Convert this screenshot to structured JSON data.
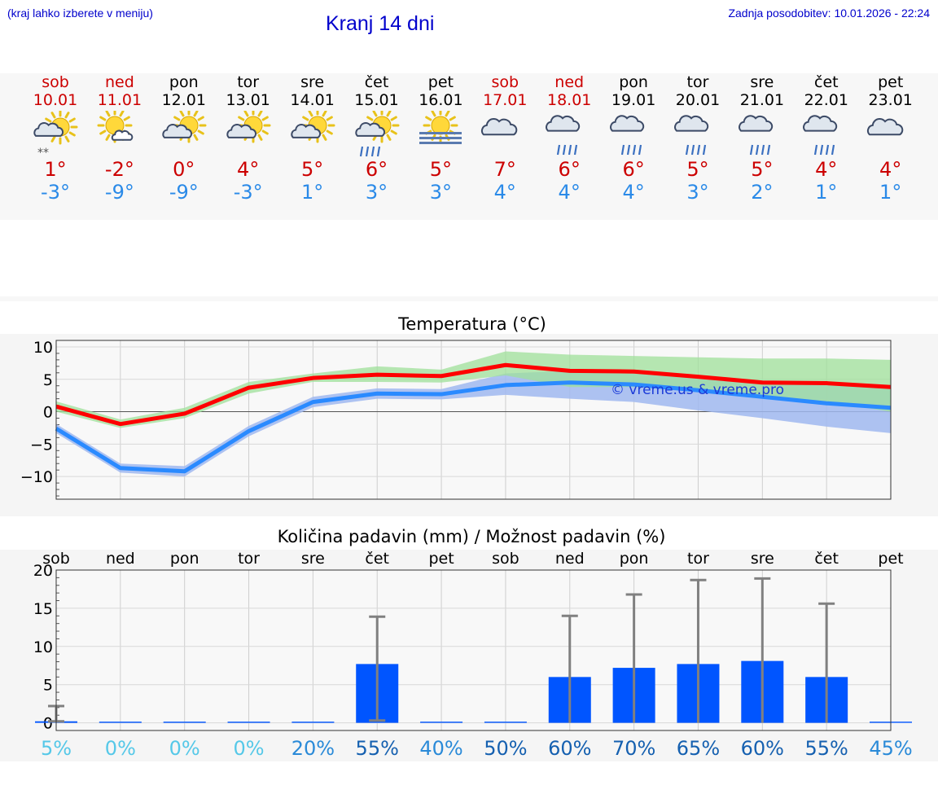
{
  "header": {
    "hint": "(kraj lahko izberete v meniju)",
    "title": "Kranj 14 dni",
    "updated": "Zadnja posodobitev: 10.01.2026 - 22:24"
  },
  "days": [
    {
      "name": "sob",
      "date": "10.01",
      "weekend": true,
      "icon": "sun-cloud-snow-icon",
      "max": "1°",
      "min": "-3°"
    },
    {
      "name": "ned",
      "date": "11.01",
      "weekend": true,
      "icon": "sun-small-cloud-icon",
      "max": "-2°",
      "min": "-9°"
    },
    {
      "name": "pon",
      "date": "12.01",
      "weekend": false,
      "icon": "sun-cloud-icon",
      "max": "0°",
      "min": "-9°"
    },
    {
      "name": "tor",
      "date": "13.01",
      "weekend": false,
      "icon": "sun-cloud-icon",
      "max": "4°",
      "min": "-3°"
    },
    {
      "name": "sre",
      "date": "14.01",
      "weekend": false,
      "icon": "sun-cloud-icon",
      "max": "5°",
      "min": "1°"
    },
    {
      "name": "čet",
      "date": "15.01",
      "weekend": false,
      "icon": "sun-cloud-rain-icon",
      "max": "6°",
      "min": "3°"
    },
    {
      "name": "pet",
      "date": "16.01",
      "weekend": false,
      "icon": "sun-fog-icon",
      "max": "5°",
      "min": "3°"
    },
    {
      "name": "sob",
      "date": "17.01",
      "weekend": true,
      "icon": "cloud-icon",
      "max": "7°",
      "min": "4°"
    },
    {
      "name": "ned",
      "date": "18.01",
      "weekend": true,
      "icon": "cloud-rain-icon",
      "max": "6°",
      "min": "4°"
    },
    {
      "name": "pon",
      "date": "19.01",
      "weekend": false,
      "icon": "cloud-rain-icon",
      "max": "6°",
      "min": "4°"
    },
    {
      "name": "tor",
      "date": "20.01",
      "weekend": false,
      "icon": "cloud-rain-icon",
      "max": "5°",
      "min": "3°"
    },
    {
      "name": "sre",
      "date": "21.01",
      "weekend": false,
      "icon": "cloud-rain-icon",
      "max": "5°",
      "min": "2°"
    },
    {
      "name": "čet",
      "date": "22.01",
      "weekend": false,
      "icon": "cloud-rain-icon",
      "max": "4°",
      "min": "1°"
    },
    {
      "name": "pet",
      "date": "23.01",
      "weekend": false,
      "icon": "cloud-icon",
      "max": "4°",
      "min": "1°"
    }
  ],
  "colors": {
    "weekend": "#cc0000",
    "weekday": "#000000",
    "max_line": "#ff0000",
    "min_line": "#2a8aff",
    "max_band": "#9fe09a",
    "min_band": "#a0b8f0",
    "bar": "#0055ff",
    "errbar": "#808080"
  },
  "chart_data": [
    {
      "type": "line",
      "title": "Temperatura (°C)",
      "watermark": "© vreme.us & vreme.pro",
      "ylim": [
        -13.5,
        11
      ],
      "yticks": [
        10,
        5,
        0,
        -5,
        -10
      ],
      "ytick_labels": [
        "10",
        "5",
        "0",
        "−5",
        "−10"
      ],
      "x": [
        0,
        1,
        2,
        3,
        4,
        5,
        6,
        7,
        8,
        9,
        10,
        11,
        12,
        13
      ],
      "series": [
        {
          "name": "max",
          "values": [
            0.8,
            -1.9,
            -0.3,
            3.7,
            5.2,
            5.7,
            5.5,
            7.2,
            6.3,
            6.2,
            5.4,
            4.5,
            4.4,
            3.8
          ],
          "band_low": [
            0.0,
            -2.5,
            -1.0,
            2.8,
            4.6,
            4.6,
            4.5,
            5.6,
            3.8,
            3.8,
            3.2,
            2.5,
            1.5,
            0.0
          ],
          "band_high": [
            1.6,
            -1.2,
            0.6,
            4.6,
            5.9,
            7.0,
            6.5,
            9.3,
            8.8,
            8.6,
            8.4,
            8.2,
            8.2,
            8.0
          ]
        },
        {
          "name": "min",
          "values": [
            -2.6,
            -8.7,
            -9.2,
            -3.0,
            1.5,
            2.8,
            2.7,
            4.1,
            4.5,
            4.2,
            3.3,
            2.3,
            1.3,
            0.6
          ],
          "band_low": [
            -3.3,
            -9.4,
            -10.0,
            -3.8,
            0.7,
            2.0,
            1.9,
            2.6,
            2.0,
            1.5,
            0.2,
            -1.0,
            -2.3,
            -3.3
          ],
          "band_high": [
            -1.9,
            -8.0,
            -8.4,
            -2.2,
            2.3,
            3.6,
            3.5,
            5.9,
            6.3,
            6.1,
            5.2,
            4.6,
            4.2,
            4.0
          ]
        }
      ]
    },
    {
      "type": "bar",
      "title": "Količina padavin (mm) / Možnost padavin (%)",
      "ylim": [
        -1,
        20
      ],
      "yticks": [
        20,
        15,
        10,
        5,
        0
      ],
      "ytick_labels": [
        "20",
        "15",
        "10",
        "5",
        "0"
      ],
      "categories": [
        "sob",
        "ned",
        "pon",
        "tor",
        "sre",
        "čet",
        "pet",
        "sob",
        "ned",
        "pon",
        "tor",
        "sre",
        "čet",
        "pet"
      ],
      "values": [
        0.2,
        0,
        0,
        0,
        0,
        7.7,
        0,
        0,
        6.0,
        7.2,
        7.7,
        8.1,
        6.0,
        0
      ],
      "err_low": [
        0.2,
        0,
        0,
        0,
        0,
        0.3,
        0,
        0,
        0,
        0,
        0,
        0,
        0,
        0
      ],
      "err_high": [
        2.2,
        0,
        0,
        0,
        0,
        13.9,
        0,
        0,
        14.0,
        16.8,
        18.7,
        18.9,
        15.6,
        0
      ],
      "chance": [
        "5%",
        "0%",
        "0%",
        "0%",
        "20%",
        "55%",
        "40%",
        "50%",
        "60%",
        "70%",
        "65%",
        "60%",
        "55%",
        "45%"
      ],
      "chance_colors": [
        "#55c8e8",
        "#55c8e8",
        "#55c8e8",
        "#55c8e8",
        "#2a8ad8",
        "#1560b0",
        "#2a8ad8",
        "#1560b0",
        "#1560b0",
        "#1560b0",
        "#1560b0",
        "#1560b0",
        "#1560b0",
        "#2a8ad8"
      ]
    }
  ]
}
